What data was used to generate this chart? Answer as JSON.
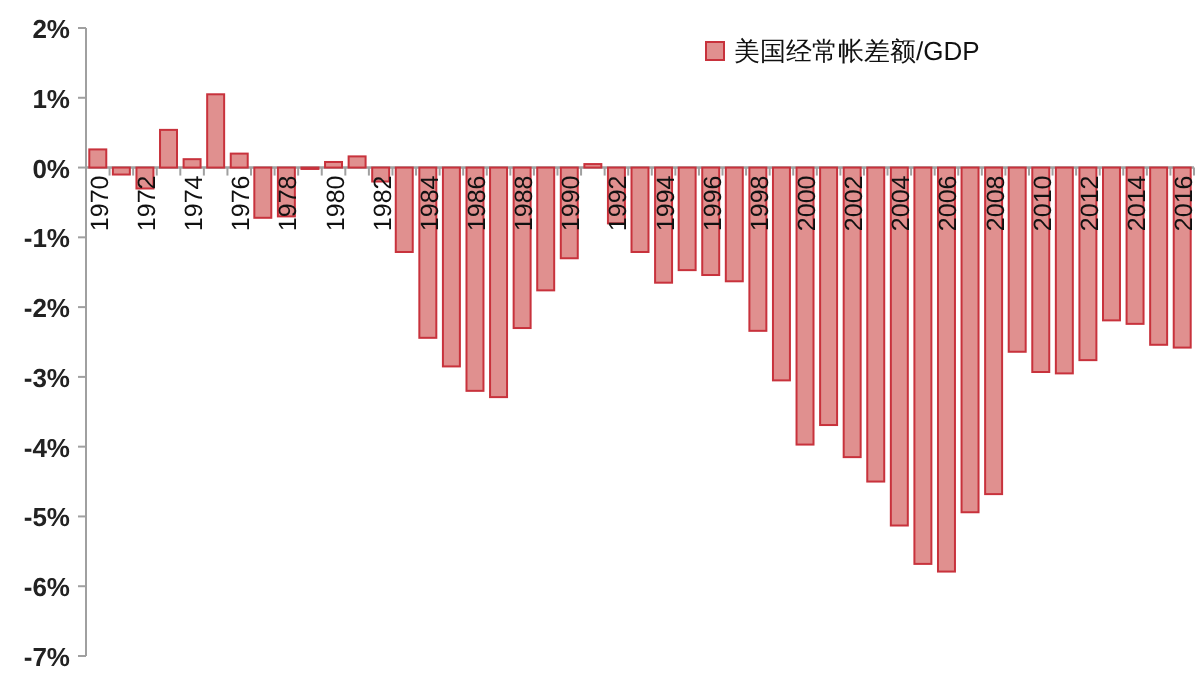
{
  "chart_data": {
    "type": "bar",
    "legend": "top right",
    "grid": false,
    "categories": [
      "1970",
      null,
      "1972",
      null,
      "1974",
      null,
      "1976",
      null,
      "1978",
      null,
      "1980",
      null,
      "1982",
      null,
      "1984",
      null,
      "1986",
      null,
      "1988",
      null,
      "1990",
      null,
      "1992",
      null,
      "1994",
      null,
      "1996",
      null,
      "1998",
      null,
      "2000",
      null,
      "2002",
      null,
      "2004",
      null,
      "2006",
      null,
      "2008",
      null,
      "2010",
      null,
      "2012",
      null,
      "2014",
      null,
      "2016"
    ],
    "series": [
      {
        "name": "美国经常帐差额/GDP",
        "color": "#e0908f",
        "values": [
          0.26,
          -0.1,
          -0.3,
          0.54,
          0.12,
          1.05,
          0.2,
          -0.72,
          -0.7,
          -0.02,
          0.08,
          0.16,
          -0.2,
          -1.21,
          -2.44,
          -2.85,
          -3.2,
          -3.29,
          -2.3,
          -1.76,
          -1.3,
          0.05,
          -0.8,
          -1.21,
          -1.65,
          -1.47,
          -1.54,
          -1.63,
          -2.34,
          -3.05,
          -3.97,
          -3.69,
          -4.15,
          -4.5,
          -5.13,
          -5.68,
          -5.79,
          -4.94,
          -4.68,
          -2.64,
          -2.93,
          -2.95,
          -2.76,
          -2.19,
          -2.24,
          -2.54,
          -2.58
        ]
      }
    ],
    "ylim": [
      -7,
      2
    ],
    "yticks": [
      {
        "value": 2,
        "label": "2%"
      },
      {
        "value": 1,
        "label": "1%"
      },
      {
        "value": 0,
        "label": "0%"
      },
      {
        "value": -1,
        "label": "-1%"
      },
      {
        "value": -2,
        "label": "-2%"
      },
      {
        "value": -3,
        "label": "-3%"
      },
      {
        "value": -4,
        "label": "-4%"
      },
      {
        "value": -5,
        "label": "-5%"
      },
      {
        "value": -6,
        "label": "-6%"
      },
      {
        "value": -7,
        "label": "-7%"
      }
    ]
  }
}
